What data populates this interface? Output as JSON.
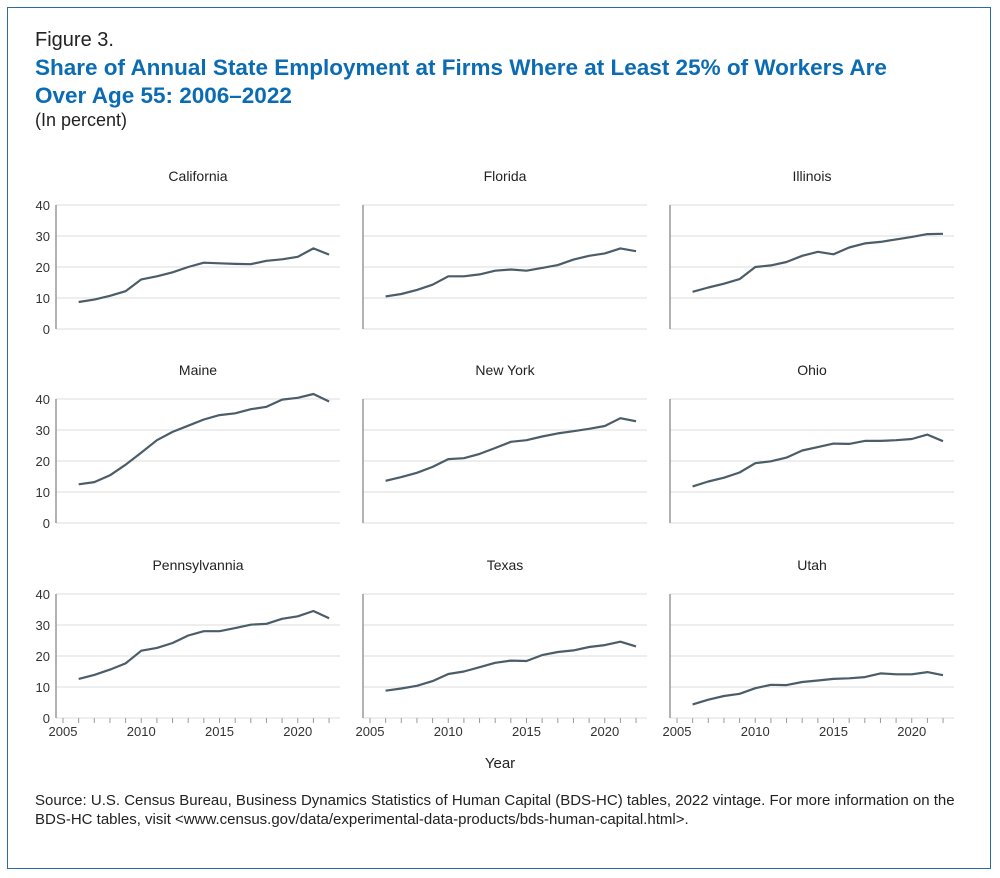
{
  "figure_label": "Figure 3.",
  "title": "Share of Annual State Employment at Firms Where at Least 25% of Workers Are Over Age 55: 2006–2022",
  "subtitle": "(In percent)",
  "source": "Source: U.S. Census Bureau, Business Dynamics Statistics of Human Capital (BDS-HC) tables, 2022 vintage. For more information on the BDS-HC tables, visit <www.census.gov/data/experimental-data-products/bds-human-capital.html>.",
  "colors": {
    "line": "#4b5d68",
    "title": "#0b6cb4",
    "frame": "#2a6aa6",
    "grid": "#dddddd"
  },
  "chart_data": {
    "type": "line",
    "layout": "small-multiples 3x3",
    "xlabel": "Year",
    "ylabel": "",
    "xlim": [
      2005,
      2022
    ],
    "ylim": [
      0,
      40
    ],
    "xticks": [
      2005,
      2010,
      2015,
      2020
    ],
    "yticks": [
      0,
      10,
      20,
      30,
      40
    ],
    "grid": "horizontal",
    "x": [
      2006,
      2007,
      2008,
      2009,
      2010,
      2011,
      2012,
      2013,
      2014,
      2015,
      2016,
      2017,
      2018,
      2019,
      2020,
      2021,
      2022
    ],
    "panels": [
      {
        "name": "California",
        "values": [
          8.7,
          9.5,
          10.7,
          12.2,
          16,
          17,
          18.3,
          20,
          21.4,
          21.2,
          21,
          20.9,
          22,
          22.5,
          23.3,
          26,
          24
        ]
      },
      {
        "name": "Florida",
        "values": [
          10.5,
          11.3,
          12.6,
          14.3,
          17,
          17,
          17.6,
          18.8,
          19.2,
          18.8,
          19.7,
          20.6,
          22.4,
          23.6,
          24.4,
          26,
          25.1
        ]
      },
      {
        "name": "Illinois",
        "values": [
          12,
          13.4,
          14.6,
          16.1,
          20,
          20.5,
          21.6,
          23.6,
          24.9,
          24.1,
          26.3,
          27.6,
          28.1,
          28.9,
          29.7,
          30.6,
          30.7
        ]
      },
      {
        "name": "Maine",
        "values": [
          12.5,
          13.2,
          15.4,
          18.8,
          22.7,
          26.7,
          29.4,
          31.4,
          33.4,
          34.8,
          35.4,
          36.7,
          37.5,
          39.8,
          40.4,
          41.6,
          39.2
        ]
      },
      {
        "name": "New York",
        "values": [
          13.6,
          14.8,
          16.2,
          18.1,
          20.6,
          20.9,
          22.3,
          24.2,
          26.2,
          26.7,
          27.9,
          28.9,
          29.6,
          30.4,
          31.3,
          33.8,
          32.8
        ]
      },
      {
        "name": "Ohio",
        "values": [
          11.8,
          13.4,
          14.6,
          16.3,
          19.3,
          19.9,
          21.1,
          23.4,
          24.5,
          25.6,
          25.5,
          26.5,
          26.5,
          26.7,
          27.1,
          28.5,
          26.4
        ]
      },
      {
        "name": "Pennsylvannia",
        "values": [
          12.6,
          13.9,
          15.6,
          17.6,
          21.7,
          22.6,
          24.2,
          26.6,
          28,
          28,
          29,
          30.1,
          30.4,
          32,
          32.8,
          34.5,
          32.2
        ]
      },
      {
        "name": "Texas",
        "values": [
          8.8,
          9.5,
          10.4,
          11.9,
          14.2,
          15,
          16.4,
          17.8,
          18.5,
          18.4,
          20.3,
          21.3,
          21.8,
          22.9,
          23.5,
          24.6,
          23.1
        ]
      },
      {
        "name": "Utah",
        "values": [
          4.4,
          5.9,
          7.1,
          7.8,
          9.6,
          10.7,
          10.6,
          11.6,
          12.1,
          12.6,
          12.8,
          13.2,
          14.4,
          14.1,
          14.1,
          14.8,
          13.8
        ]
      }
    ]
  }
}
